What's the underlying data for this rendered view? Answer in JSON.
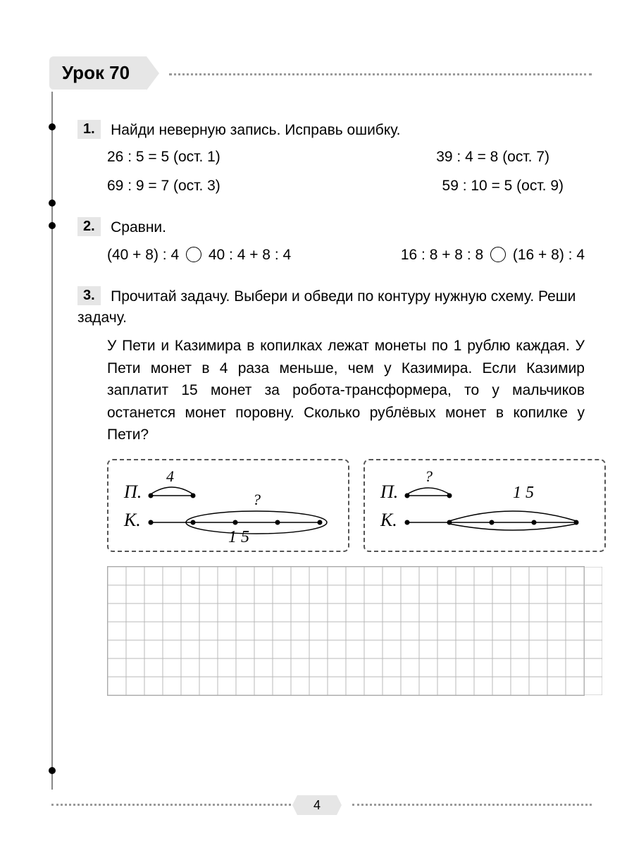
{
  "lesson_title": "Урок 70",
  "page_number": "4",
  "colors": {
    "tab_bg": "#e6e6e6",
    "dot_line": "#9a9a9a",
    "vline": "#888888",
    "text": "#000000",
    "grid_line": "#b8b8b8",
    "dash_border": "#555555"
  },
  "ex1": {
    "num": "1.",
    "prompt": "Найди неверную запись. Исправь ошибку.",
    "items": [
      "26 : 5 = 5 (ост. 1)",
      "39 : 4 = 8 (ост. 7)",
      "69 : 9 = 7 (ост. 3)",
      "59 : 10 = 5 (ост. 9)"
    ]
  },
  "ex2": {
    "num": "2.",
    "prompt": "Сравни.",
    "left_a": "(40 + 8) : 4",
    "left_b": "40 : 4 + 8 : 4",
    "right_a": "16 : 8 + 8 : 8",
    "right_b": "(16 + 8) : 4"
  },
  "ex3": {
    "num": "3.",
    "prompt": "Прочитай задачу. Выбери и обведи по контуру нужную схему. Реши задачу.",
    "story": "У Пети и Казимира в копилках лежат монеты по 1 рублю каждая. У Пети монет в 4 раза меньше, чем у Казимира. Если Казимир заплатит 15 монет за робота-трансформера, то у мальчиков останется монет поровну. Сколько рублёвых монет в копилке у Пети?",
    "labels": {
      "P": "П.",
      "K": "К.",
      "four": "4",
      "q": "?",
      "fifteen": "1 5"
    }
  },
  "grid": {
    "cols": 27,
    "rows": 7,
    "cell": 26
  }
}
